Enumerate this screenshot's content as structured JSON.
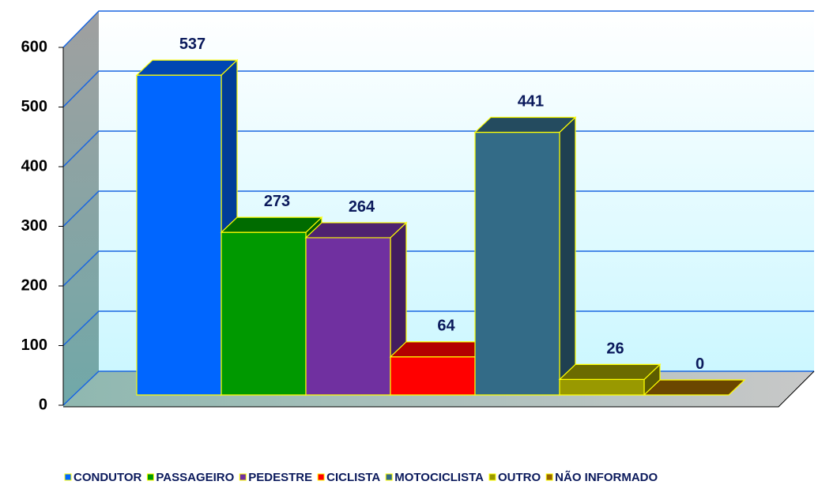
{
  "chart_data": {
    "type": "bar3d",
    "series": [
      {
        "name": "CONDUTOR",
        "color": "#0066ff",
        "values": [
          537
        ]
      },
      {
        "name": "PASSAGEIRO",
        "color": "#009900",
        "values": [
          273
        ]
      },
      {
        "name": "PEDESTRE",
        "color": "#7030a0",
        "values": [
          264
        ]
      },
      {
        "name": "CICLISTA",
        "color": "#ff0000",
        "values": [
          64
        ]
      },
      {
        "name": "MOTOCICLISTA",
        "color": "#336b87",
        "values": [
          441
        ]
      },
      {
        "name": "OUTRO",
        "color": "#999900",
        "values": [
          26
        ]
      },
      {
        "name": "NÃO INFORMADO",
        "color": "#996600",
        "values": [
          0
        ]
      }
    ],
    "ylim": [
      0,
      600
    ],
    "yticks": [
      0,
      100,
      200,
      300,
      400,
      500,
      600
    ],
    "grid": true,
    "legend": "bottom"
  }
}
